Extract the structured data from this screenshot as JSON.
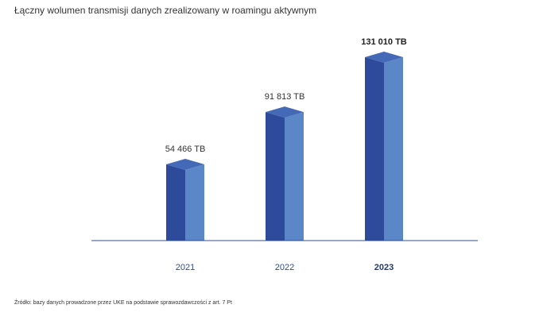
{
  "title": "Łączny wolumen transmisji danych zrealizowany w roamingu aktywnym",
  "source": "Źródło: bazy danych prowadzone przez UKE na podstawie sprawozdawczości z art. 7 Pt",
  "colors": {
    "front": "#2d4b9a",
    "side": "#5b86c8",
    "top": "#4469b6",
    "baseline": "#2c4f8f"
  },
  "chart_data": {
    "type": "bar",
    "categories": [
      "2021",
      "2022",
      "2023"
    ],
    "values": [
      54466,
      91813,
      131010
    ],
    "value_labels": [
      "54 466 TB",
      "91 813 TB",
      "131 010 TB"
    ],
    "unit": "TB",
    "highlight_index": 2,
    "title": "Łączny wolumen transmisji danych zrealizowany w roamingu aktywnym",
    "xlabel": "",
    "ylabel": "",
    "ylim": [
      0,
      140000
    ],
    "grid": false,
    "legend": "none"
  }
}
